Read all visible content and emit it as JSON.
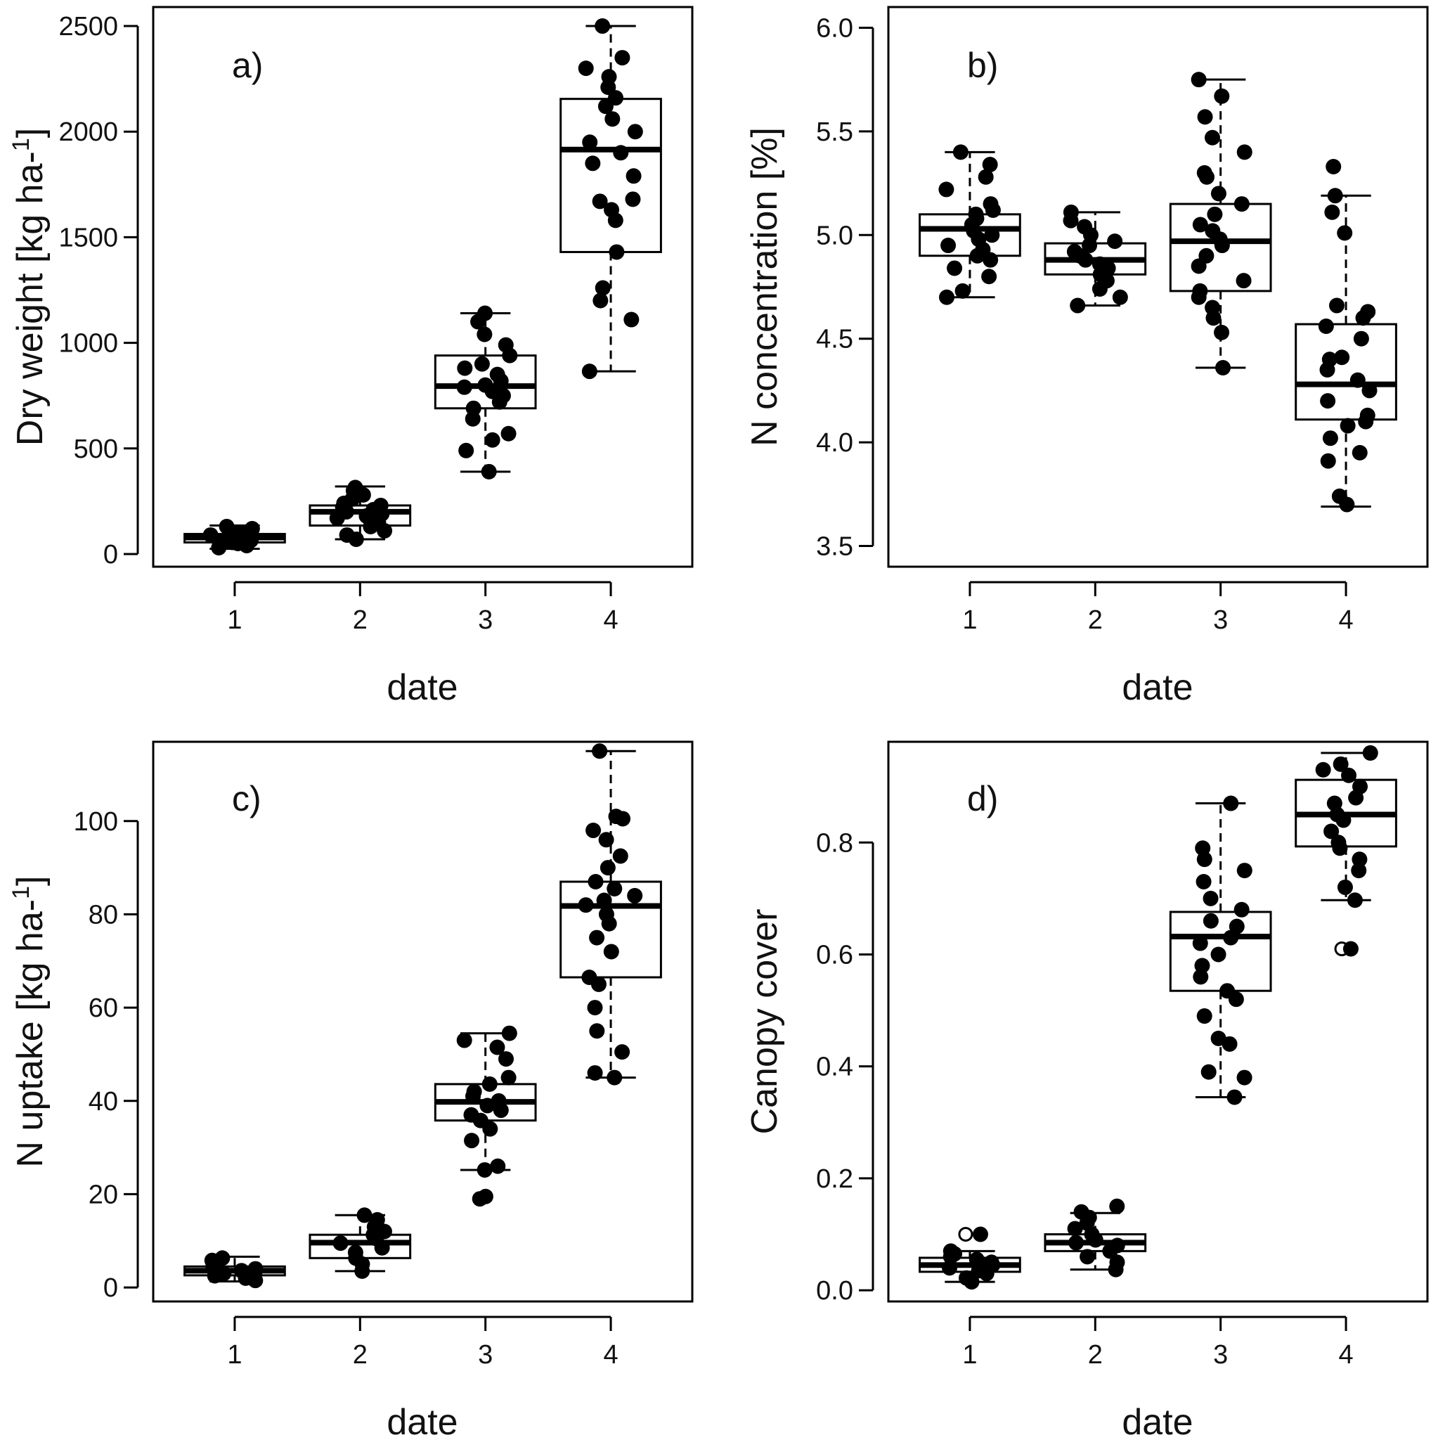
{
  "chart_data": [
    {
      "type": "box",
      "panel_label": "a)",
      "xlabel": "date",
      "ylabel": "Dry weight [kg ha-",
      "ylabel_superscript": "1",
      "ylabel_close": "]",
      "categories": [
        "1",
        "2",
        "3",
        "4"
      ],
      "ylim": [
        -60,
        2590
      ],
      "yticks": [
        0,
        500,
        1000,
        1500,
        2000,
        2500
      ],
      "ytick_labels": [
        "0",
        "500",
        "1000",
        "1500",
        "2000",
        "2500"
      ],
      "boxes": [
        {
          "category": "1",
          "whisker_low": 25,
          "q1": 55,
          "median": 78,
          "q3": 95,
          "whisker_high": 135
        },
        {
          "category": "2",
          "whisker_low": 70,
          "q1": 135,
          "median": 200,
          "q3": 230,
          "whisker_high": 320
        },
        {
          "category": "3",
          "whisker_low": 390,
          "q1": 690,
          "median": 795,
          "q3": 940,
          "whisker_high": 1140
        },
        {
          "category": "4",
          "whisker_low": 865,
          "q1": 1430,
          "median": 1915,
          "q3": 2155,
          "whisker_high": 2500
        }
      ],
      "points": [
        [
          1,
          30
        ],
        [
          1,
          40
        ],
        [
          1,
          50
        ],
        [
          1,
          55
        ],
        [
          1,
          60
        ],
        [
          1,
          65
        ],
        [
          1,
          70
        ],
        [
          1,
          75
        ],
        [
          1,
          80
        ],
        [
          1,
          85
        ],
        [
          1,
          90
        ],
        [
          1,
          95
        ],
        [
          1,
          100
        ],
        [
          1,
          110
        ],
        [
          1,
          120
        ],
        [
          1,
          130
        ],
        [
          2,
          70
        ],
        [
          2,
          90
        ],
        [
          2,
          110
        ],
        [
          2,
          130
        ],
        [
          2,
          150
        ],
        [
          2,
          160
        ],
        [
          2,
          170
        ],
        [
          2,
          180
        ],
        [
          2,
          190
        ],
        [
          2,
          200
        ],
        [
          2,
          210
        ],
        [
          2,
          220
        ],
        [
          2,
          230
        ],
        [
          2,
          240
        ],
        [
          2,
          260
        ],
        [
          2,
          280
        ],
        [
          2,
          300
        ],
        [
          2,
          315
        ],
        [
          3,
          390
        ],
        [
          3,
          490
        ],
        [
          3,
          540
        ],
        [
          3,
          570
        ],
        [
          3,
          640
        ],
        [
          3,
          690
        ],
        [
          3,
          720
        ],
        [
          3,
          750
        ],
        [
          3,
          770
        ],
        [
          3,
          790
        ],
        [
          3,
          800
        ],
        [
          3,
          820
        ],
        [
          3,
          850
        ],
        [
          3,
          880
        ],
        [
          3,
          900
        ],
        [
          3,
          940
        ],
        [
          3,
          990
        ],
        [
          3,
          1040
        ],
        [
          3,
          1100
        ],
        [
          3,
          1140
        ],
        [
          4,
          865
        ],
        [
          4,
          1110
        ],
        [
          4,
          1200
        ],
        [
          4,
          1260
        ],
        [
          4,
          1430
        ],
        [
          4,
          1580
        ],
        [
          4,
          1630
        ],
        [
          4,
          1670
        ],
        [
          4,
          1680
        ],
        [
          4,
          1790
        ],
        [
          4,
          1850
        ],
        [
          4,
          1900
        ],
        [
          4,
          1950
        ],
        [
          4,
          2000
        ],
        [
          4,
          2060
        ],
        [
          4,
          2120
        ],
        [
          4,
          2160
        ],
        [
          4,
          2210
        ],
        [
          4,
          2260
        ],
        [
          4,
          2300
        ],
        [
          4,
          2350
        ],
        [
          4,
          2500
        ]
      ],
      "outliers": []
    },
    {
      "type": "box",
      "panel_label": "b)",
      "xlabel": "date",
      "ylabel": "N concentration [%]",
      "categories": [
        "1",
        "2",
        "3",
        "4"
      ],
      "ylim": [
        3.4,
        6.1
      ],
      "yticks": [
        3.5,
        4.0,
        4.5,
        5.0,
        5.5,
        6.0
      ],
      "ytick_labels": [
        "3.5",
        "4.0",
        "4.5",
        "5.0",
        "5.5",
        "6.0"
      ],
      "boxes": [
        {
          "category": "1",
          "whisker_low": 4.7,
          "q1": 4.9,
          "median": 5.03,
          "q3": 5.1,
          "whisker_high": 5.4
        },
        {
          "category": "2",
          "whisker_low": 4.66,
          "q1": 4.81,
          "median": 4.88,
          "q3": 4.96,
          "whisker_high": 5.11
        },
        {
          "category": "3",
          "whisker_low": 4.36,
          "q1": 4.73,
          "median": 4.97,
          "q3": 5.15,
          "whisker_high": 5.75
        },
        {
          "category": "4",
          "whisker_low": 3.69,
          "q1": 4.11,
          "median": 4.28,
          "q3": 4.57,
          "whisker_high": 5.19
        }
      ],
      "points": [
        [
          1,
          4.7
        ],
        [
          1,
          4.73
        ],
        [
          1,
          4.8
        ],
        [
          1,
          4.84
        ],
        [
          1,
          4.88
        ],
        [
          1,
          4.9
        ],
        [
          1,
          4.93
        ],
        [
          1,
          4.95
        ],
        [
          1,
          4.98
        ],
        [
          1,
          5.0
        ],
        [
          1,
          5.02
        ],
        [
          1,
          5.05
        ],
        [
          1,
          5.08
        ],
        [
          1,
          5.1
        ],
        [
          1,
          5.12
        ],
        [
          1,
          5.15
        ],
        [
          1,
          5.22
        ],
        [
          1,
          5.28
        ],
        [
          1,
          5.34
        ],
        [
          1,
          5.4
        ],
        [
          2,
          4.66
        ],
        [
          2,
          4.7
        ],
        [
          2,
          4.74
        ],
        [
          2,
          4.78
        ],
        [
          2,
          4.81
        ],
        [
          2,
          4.84
        ],
        [
          2,
          4.86
        ],
        [
          2,
          4.88
        ],
        [
          2,
          4.9
        ],
        [
          2,
          4.92
        ],
        [
          2,
          4.95
        ],
        [
          2,
          4.97
        ],
        [
          2,
          5.0
        ],
        [
          2,
          5.04
        ],
        [
          2,
          5.07
        ],
        [
          2,
          5.11
        ],
        [
          3,
          4.36
        ],
        [
          3,
          4.53
        ],
        [
          3,
          4.6
        ],
        [
          3,
          4.65
        ],
        [
          3,
          4.7
        ],
        [
          3,
          4.73
        ],
        [
          3,
          4.78
        ],
        [
          3,
          4.85
        ],
        [
          3,
          4.9
        ],
        [
          3,
          4.95
        ],
        [
          3,
          4.98
        ],
        [
          3,
          5.02
        ],
        [
          3,
          5.05
        ],
        [
          3,
          5.1
        ],
        [
          3,
          5.15
        ],
        [
          3,
          5.2
        ],
        [
          3,
          5.28
        ],
        [
          3,
          5.3
        ],
        [
          3,
          5.4
        ],
        [
          3,
          5.47
        ],
        [
          3,
          5.57
        ],
        [
          3,
          5.67
        ],
        [
          3,
          5.75
        ],
        [
          4,
          3.7
        ],
        [
          4,
          3.74
        ],
        [
          4,
          3.91
        ],
        [
          4,
          3.95
        ],
        [
          4,
          4.02
        ],
        [
          4,
          4.08
        ],
        [
          4,
          4.1
        ],
        [
          4,
          4.13
        ],
        [
          4,
          4.2
        ],
        [
          4,
          4.25
        ],
        [
          4,
          4.3
        ],
        [
          4,
          4.35
        ],
        [
          4,
          4.4
        ],
        [
          4,
          4.41
        ],
        [
          4,
          4.5
        ],
        [
          4,
          4.56
        ],
        [
          4,
          4.6
        ],
        [
          4,
          4.63
        ],
        [
          4,
          4.66
        ],
        [
          4,
          5.01
        ],
        [
          4,
          5.11
        ],
        [
          4,
          5.19
        ],
        [
          4,
          5.33
        ]
      ],
      "outliers": []
    },
    {
      "type": "box",
      "panel_label": "c)",
      "xlabel": "date",
      "ylabel": "N uptake [kg ha-",
      "ylabel_superscript": "1",
      "ylabel_close": "]",
      "categories": [
        "1",
        "2",
        "3",
        "4"
      ],
      "ylim": [
        -3,
        117
      ],
      "yticks": [
        0,
        20,
        40,
        60,
        80,
        100
      ],
      "ytick_labels": [
        "0",
        "20",
        "40",
        "60",
        "80",
        "100"
      ],
      "boxes": [
        {
          "category": "1",
          "whisker_low": 1.3,
          "q1": 2.6,
          "median": 3.6,
          "q3": 4.5,
          "whisker_high": 6.6
        },
        {
          "category": "2",
          "whisker_low": 3.5,
          "q1": 6.3,
          "median": 9.6,
          "q3": 11.3,
          "whisker_high": 15.5
        },
        {
          "category": "3",
          "whisker_low": 25.2,
          "q1": 35.8,
          "median": 39.8,
          "q3": 43.6,
          "whisker_high": 54.5
        },
        {
          "category": "4",
          "whisker_low": 45,
          "q1": 66.5,
          "median": 81.8,
          "q3": 87,
          "whisker_high": 115
        }
      ],
      "points": [
        [
          1,
          1.5
        ],
        [
          1,
          2
        ],
        [
          1,
          2.5
        ],
        [
          1,
          3
        ],
        [
          1,
          3.3
        ],
        [
          1,
          3.6
        ],
        [
          1,
          4
        ],
        [
          1,
          4.3
        ],
        [
          1,
          4.8
        ],
        [
          1,
          5.2
        ],
        [
          1,
          5.8
        ],
        [
          1,
          6.3
        ],
        [
          2,
          3.5
        ],
        [
          2,
          5
        ],
        [
          2,
          6.3
        ],
        [
          2,
          7.5
        ],
        [
          2,
          8.5
        ],
        [
          2,
          9.5
        ],
        [
          2,
          10.5
        ],
        [
          2,
          11.3
        ],
        [
          2,
          12
        ],
        [
          2,
          13
        ],
        [
          2,
          14.5
        ],
        [
          2,
          15.5
        ],
        [
          3,
          19
        ],
        [
          3,
          19.5
        ],
        [
          3,
          25.2
        ],
        [
          3,
          26
        ],
        [
          3,
          31.5
        ],
        [
          3,
          34
        ],
        [
          3,
          35.8
        ],
        [
          3,
          37
        ],
        [
          3,
          38
        ],
        [
          3,
          39
        ],
        [
          3,
          40
        ],
        [
          3,
          41
        ],
        [
          3,
          42
        ],
        [
          3,
          43.6
        ],
        [
          3,
          45
        ],
        [
          3,
          49
        ],
        [
          3,
          51.5
        ],
        [
          3,
          53
        ],
        [
          3,
          54.5
        ],
        [
          4,
          45
        ],
        [
          4,
          46
        ],
        [
          4,
          50.5
        ],
        [
          4,
          55
        ],
        [
          4,
          60
        ],
        [
          4,
          65
        ],
        [
          4,
          66.5
        ],
        [
          4,
          72
        ],
        [
          4,
          75
        ],
        [
          4,
          78
        ],
        [
          4,
          80
        ],
        [
          4,
          82
        ],
        [
          4,
          83
        ],
        [
          4,
          84
        ],
        [
          4,
          85.5
        ],
        [
          4,
          87
        ],
        [
          4,
          90
        ],
        [
          4,
          92.5
        ],
        [
          4,
          96
        ],
        [
          4,
          98
        ],
        [
          4,
          100.5
        ],
        [
          4,
          101
        ],
        [
          4,
          115
        ]
      ],
      "outliers": []
    },
    {
      "type": "box",
      "panel_label": "d)",
      "xlabel": "date",
      "ylabel": "Canopy cover",
      "categories": [
        "1",
        "2",
        "3",
        "4"
      ],
      "ylim": [
        -0.02,
        0.98
      ],
      "yticks": [
        0.0,
        0.2,
        0.4,
        0.6,
        0.8
      ],
      "ytick_labels": [
        "0.0",
        "0.2",
        "0.4",
        "0.6",
        "0.8"
      ],
      "boxes": [
        {
          "category": "1",
          "whisker_low": 0.015,
          "q1": 0.033,
          "median": 0.045,
          "q3": 0.058,
          "whisker_high": 0.07
        },
        {
          "category": "2",
          "whisker_low": 0.037,
          "q1": 0.07,
          "median": 0.085,
          "q3": 0.1,
          "whisker_high": 0.138
        },
        {
          "category": "3",
          "whisker_low": 0.345,
          "q1": 0.535,
          "median": 0.632,
          "q3": 0.676,
          "whisker_high": 0.87
        },
        {
          "category": "4",
          "whisker_low": 0.697,
          "q1": 0.793,
          "median": 0.85,
          "q3": 0.912,
          "whisker_high": 0.96
        }
      ],
      "points": [
        [
          1,
          0.015
        ],
        [
          1,
          0.022
        ],
        [
          1,
          0.03
        ],
        [
          1,
          0.035
        ],
        [
          1,
          0.04
        ],
        [
          1,
          0.045
        ],
        [
          1,
          0.05
        ],
        [
          1,
          0.055
        ],
        [
          1,
          0.06
        ],
        [
          1,
          0.065
        ],
        [
          1,
          0.07
        ],
        [
          1,
          0.1
        ],
        [
          2,
          0.037
        ],
        [
          2,
          0.05
        ],
        [
          2,
          0.06
        ],
        [
          2,
          0.07
        ],
        [
          2,
          0.08
        ],
        [
          2,
          0.085
        ],
        [
          2,
          0.09
        ],
        [
          2,
          0.1
        ],
        [
          2,
          0.11
        ],
        [
          2,
          0.12
        ],
        [
          2,
          0.13
        ],
        [
          2,
          0.14
        ],
        [
          2,
          0.15
        ],
        [
          3,
          0.345
        ],
        [
          3,
          0.38
        ],
        [
          3,
          0.39
        ],
        [
          3,
          0.44
        ],
        [
          3,
          0.45
        ],
        [
          3,
          0.49
        ],
        [
          3,
          0.52
        ],
        [
          3,
          0.535
        ],
        [
          3,
          0.56
        ],
        [
          3,
          0.58
        ],
        [
          3,
          0.6
        ],
        [
          3,
          0.62
        ],
        [
          3,
          0.63
        ],
        [
          3,
          0.65
        ],
        [
          3,
          0.66
        ],
        [
          3,
          0.68
        ],
        [
          3,
          0.7
        ],
        [
          3,
          0.73
        ],
        [
          3,
          0.75
        ],
        [
          3,
          0.77
        ],
        [
          3,
          0.79
        ],
        [
          3,
          0.87
        ],
        [
          4,
          0.61
        ],
        [
          4,
          0.697
        ],
        [
          4,
          0.72
        ],
        [
          4,
          0.75
        ],
        [
          4,
          0.77
        ],
        [
          4,
          0.79
        ],
        [
          4,
          0.8
        ],
        [
          4,
          0.82
        ],
        [
          4,
          0.84
        ],
        [
          4,
          0.85
        ],
        [
          4,
          0.87
        ],
        [
          4,
          0.88
        ],
        [
          4,
          0.9
        ],
        [
          4,
          0.92
        ],
        [
          4,
          0.93
        ],
        [
          4,
          0.94
        ],
        [
          4,
          0.96
        ]
      ],
      "outliers": [
        [
          1,
          0.1
        ],
        [
          4,
          0.61
        ]
      ]
    }
  ]
}
